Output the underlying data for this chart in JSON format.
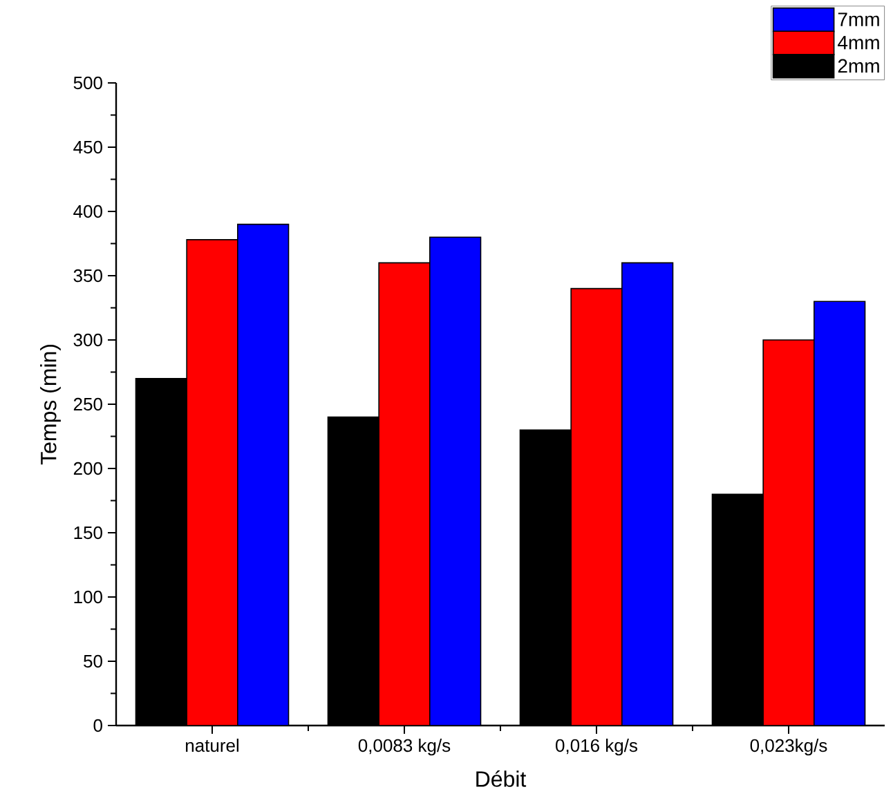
{
  "chart_data": {
    "type": "bar",
    "xlabel": "Débit",
    "ylabel": "Temps (min)",
    "categories": [
      "naturel",
      "0,0083 kg/s",
      "0,016 kg/s",
      "0,023kg/s"
    ],
    "series": [
      {
        "name": "2mm",
        "color": "#000000",
        "values": [
          270,
          240,
          230,
          180
        ]
      },
      {
        "name": "4mm",
        "color": "#ff0000",
        "values": [
          378,
          360,
          340,
          300
        ]
      },
      {
        "name": "7mm",
        "color": "#0000ff",
        "values": [
          390,
          380,
          360,
          330
        ]
      }
    ],
    "ylim": [
      0,
      500
    ],
    "yticks": [
      0,
      50,
      100,
      150,
      200,
      250,
      300,
      350,
      400,
      450,
      500
    ],
    "grid": false,
    "legend": "top right"
  }
}
